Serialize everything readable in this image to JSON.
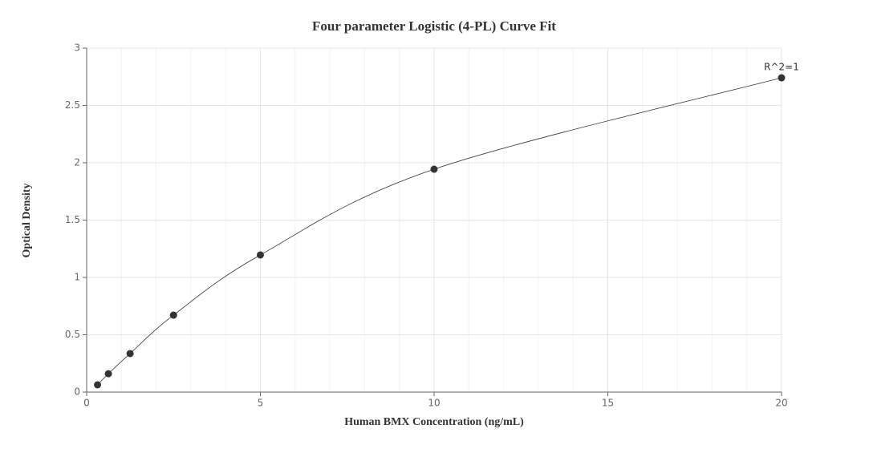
{
  "chart_data": {
    "type": "line",
    "title": "Four parameter Logistic (4-PL) Curve Fit",
    "x_label": "Human BMX Concentration (ng/mL)",
    "y_label": "Optical Density",
    "annotation": "R^2=1",
    "x": [
      0.3125,
      0.625,
      1.25,
      2.5,
      5,
      10,
      20
    ],
    "series": [
      {
        "color": "#333333",
        "values": [
          0.063,
          0.16,
          0.336,
          0.671,
          1.196,
          1.944,
          2.741
        ]
      }
    ],
    "xlim": [
      0,
      20
    ],
    "xticks": [
      0,
      5,
      10,
      15,
      20
    ],
    "xminorticks": [
      1,
      2,
      3,
      4,
      6,
      7,
      8,
      9,
      11,
      12,
      13,
      14,
      16,
      17,
      18,
      19
    ],
    "ylim": [
      0,
      3
    ],
    "yticks": [
      0,
      0.5,
      1,
      1.5,
      2,
      2.5,
      3
    ],
    "grid": true
  }
}
